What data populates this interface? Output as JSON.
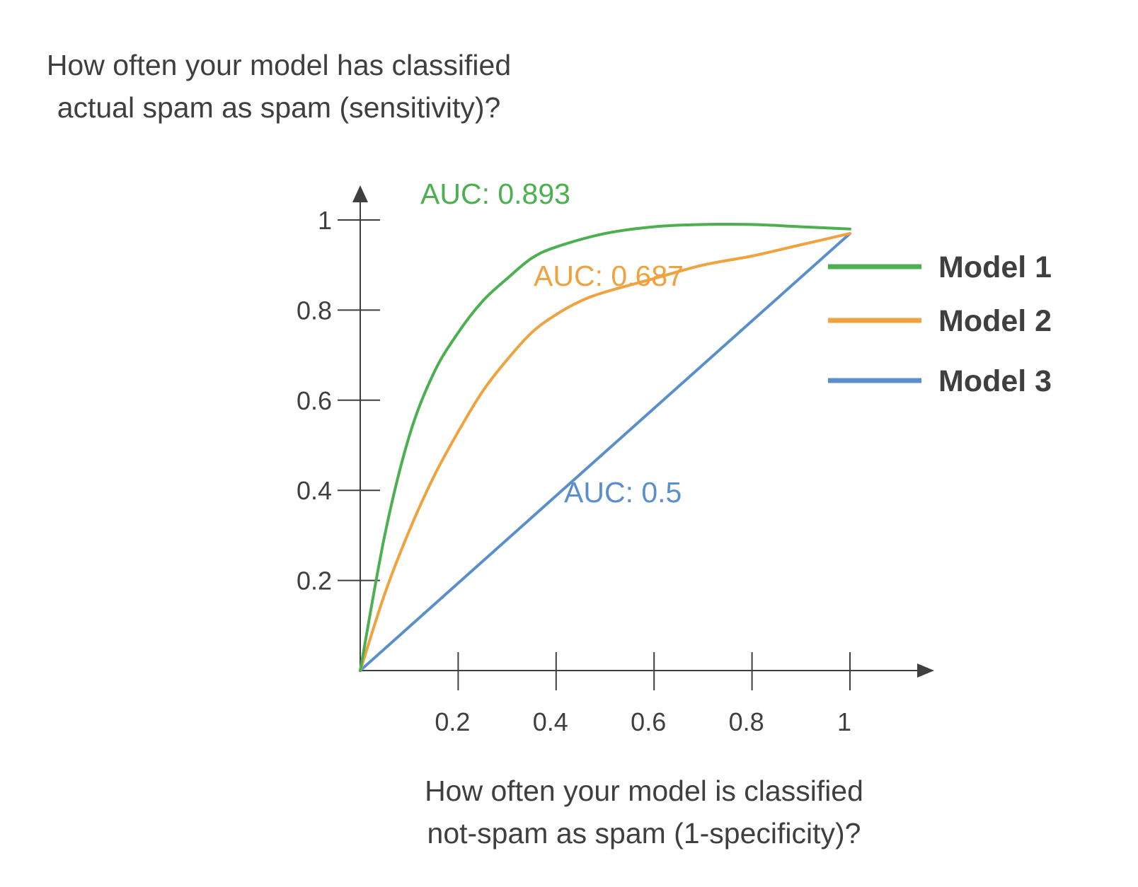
{
  "chart_data": {
    "type": "line",
    "ylabel_lines": [
      "How often your model has classified",
      "actual spam as spam (sensitivity)?"
    ],
    "xlabel_lines": [
      "How often your model is classified",
      "not-spam as spam (1-specificity)?"
    ],
    "xticks": [
      "0.2",
      "0.4",
      "0.6",
      "0.8",
      "1"
    ],
    "yticks": [
      "0.2",
      "0.4",
      "0.6",
      "0.8",
      "1"
    ],
    "xlim": [
      0,
      1
    ],
    "ylim": [
      0,
      1
    ],
    "grid": false,
    "legend_position": "right",
    "series": [
      {
        "name": "Model 1",
        "color": "#4caf50",
        "auc_label": "AUC: 0.893",
        "x": [
          0,
          0.05,
          0.1,
          0.15,
          0.2,
          0.25,
          0.3,
          0.35,
          0.4,
          0.5,
          0.6,
          0.7,
          0.8,
          0.9,
          1.0
        ],
        "y": [
          0,
          0.3,
          0.52,
          0.66,
          0.75,
          0.82,
          0.87,
          0.915,
          0.94,
          0.97,
          0.985,
          0.99,
          0.99,
          0.985,
          0.98
        ]
      },
      {
        "name": "Model 2",
        "color": "#f0a23e",
        "auc_label": "AUC: 0.687",
        "x": [
          0,
          0.05,
          0.1,
          0.15,
          0.2,
          0.25,
          0.3,
          0.35,
          0.4,
          0.45,
          0.5,
          0.6,
          0.7,
          0.8,
          0.9,
          1.0
        ],
        "y": [
          0,
          0.17,
          0.31,
          0.43,
          0.53,
          0.62,
          0.69,
          0.75,
          0.79,
          0.82,
          0.84,
          0.87,
          0.9,
          0.92,
          0.945,
          0.97
        ]
      },
      {
        "name": "Model 3",
        "color": "#5b8fcb",
        "auc_label": "AUC: 0.5",
        "x": [
          0,
          1
        ],
        "y": [
          0,
          0.97
        ]
      }
    ]
  }
}
